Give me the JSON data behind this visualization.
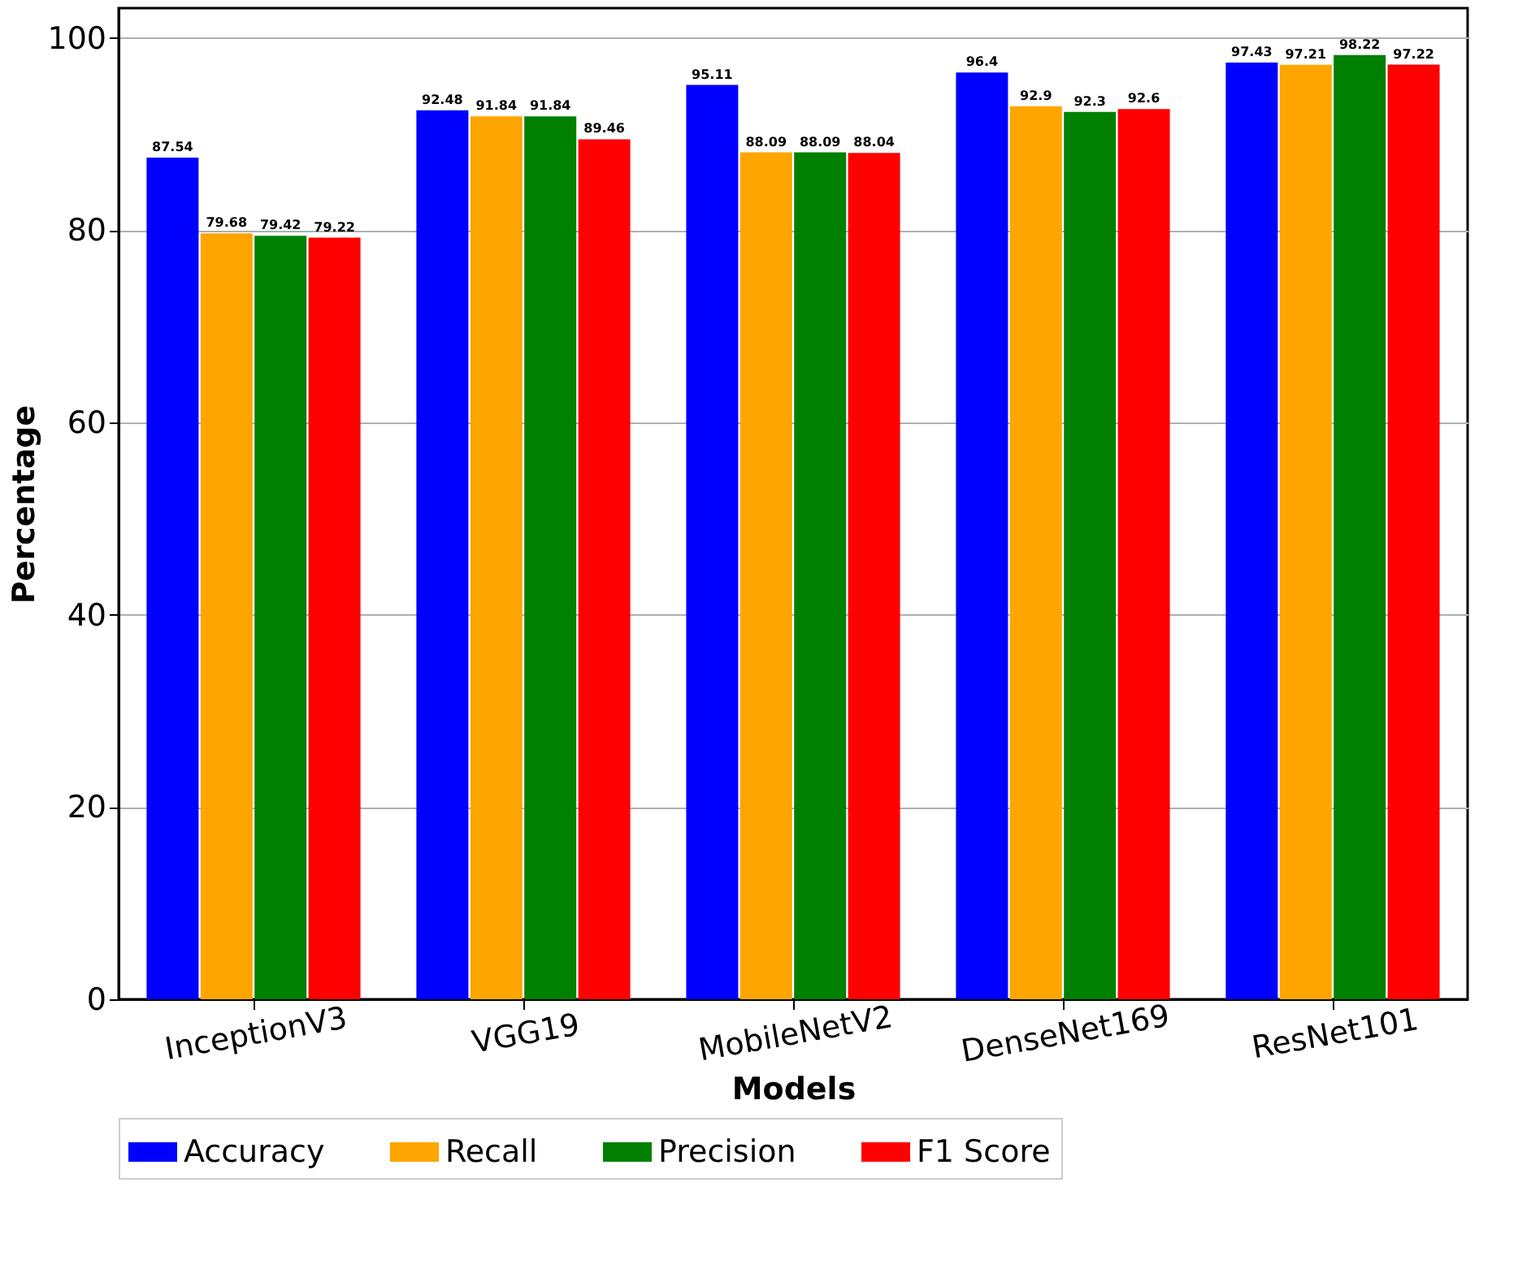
{
  "chart_data": {
    "type": "bar",
    "xlabel": "Models",
    "ylabel": "Percentage",
    "categories": [
      "InceptionV3",
      "VGG19",
      "MobileNetV2",
      "DenseNet169",
      "ResNet101"
    ],
    "series": [
      {
        "name": "Accuracy",
        "color": "#0000ff",
        "values": [
          87.54,
          92.48,
          95.11,
          96.4,
          97.43
        ]
      },
      {
        "name": "Recall",
        "color": "#ffa500",
        "values": [
          79.68,
          91.84,
          88.09,
          92.9,
          97.21
        ]
      },
      {
        "name": "Precision",
        "color": "#008000",
        "values": [
          79.42,
          91.84,
          88.09,
          92.3,
          98.22
        ]
      },
      {
        "name": "F1 Score",
        "color": "#ff0000",
        "values": [
          79.22,
          89.46,
          88.04,
          92.6,
          97.22
        ]
      }
    ],
    "ylim": [
      0,
      103.1
    ],
    "yticks": [
      0,
      20,
      40,
      60,
      80,
      100
    ],
    "grid": "y",
    "legend": "bottom",
    "data_labels": true
  }
}
